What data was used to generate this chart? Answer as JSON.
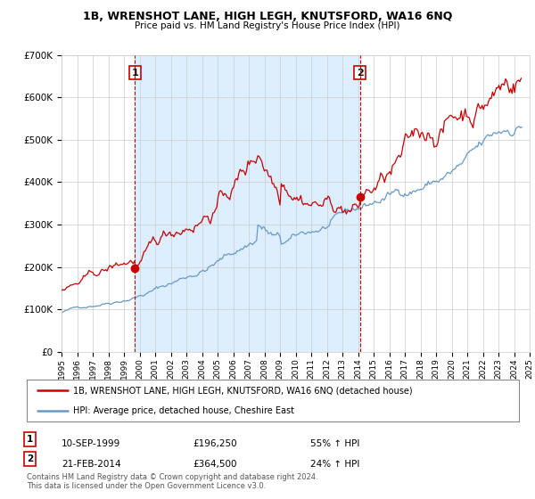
{
  "title": "1B, WRENSHOT LANE, HIGH LEGH, KNUTSFORD, WA16 6NQ",
  "subtitle": "Price paid vs. HM Land Registry's House Price Index (HPI)",
  "legend_line1": "1B, WRENSHOT LANE, HIGH LEGH, KNUTSFORD, WA16 6NQ (detached house)",
  "legend_line2": "HPI: Average price, detached house, Cheshire East",
  "footnote": "Contains HM Land Registry data © Crown copyright and database right 2024.\nThis data is licensed under the Open Government Licence v3.0.",
  "transaction1_date": "10-SEP-1999",
  "transaction1_price": "£196,250",
  "transaction1_hpi": "55% ↑ HPI",
  "transaction2_date": "21-FEB-2014",
  "transaction2_price": "£364,500",
  "transaction2_hpi": "24% ↑ HPI",
  "red_color": "#cc0000",
  "blue_color": "#6699cc",
  "shade_color": "#ddeeff",
  "background_color": "#ffffff",
  "ylim_min": 0,
  "ylim_max": 700000,
  "yticks": [
    0,
    100000,
    200000,
    300000,
    400000,
    500000,
    600000,
    700000
  ],
  "ytick_labels": [
    "£0",
    "£100K",
    "£200K",
    "£300K",
    "£400K",
    "£500K",
    "£600K",
    "£700K"
  ],
  "transaction1_x": 1999.7,
  "transaction1_y": 196250,
  "transaction2_x": 2014.12,
  "transaction2_y": 364500,
  "vline1_x": 1999.7,
  "vline2_x": 2014.12,
  "xlim_min": 1995,
  "xlim_max": 2025
}
